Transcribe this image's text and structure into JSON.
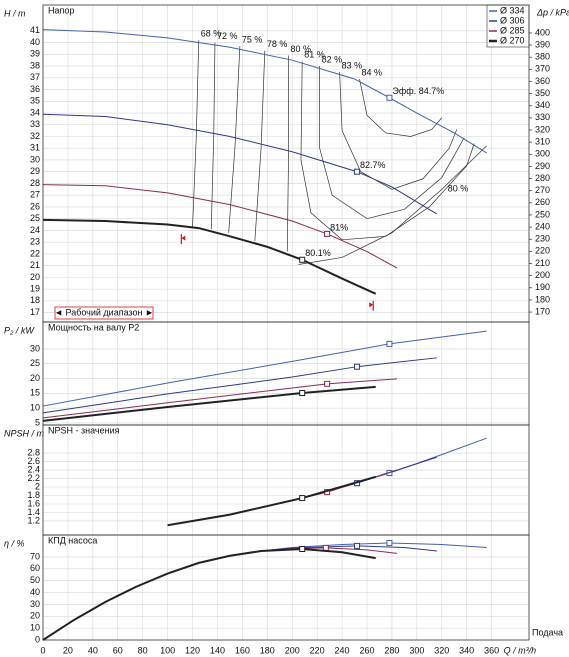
{
  "chart_data": [
    {
      "type": "line",
      "title": "Напор",
      "ylabel": "H / m",
      "y2label": "Δp / kPa",
      "ylim": [
        16.2,
        43.2
      ],
      "yticks": [
        17,
        18,
        19,
        20,
        21,
        22,
        23,
        24,
        25,
        26,
        27,
        28,
        29,
        30,
        31,
        32,
        33,
        34,
        35,
        36,
        37,
        38,
        39,
        40,
        41
      ],
      "y2lim": [
        161.8,
        423
      ],
      "y2ticks": [
        170,
        180,
        190,
        200,
        210,
        220,
        230,
        240,
        250,
        260,
        270,
        280,
        290,
        300,
        310,
        320,
        330,
        340,
        350,
        360,
        370,
        380,
        390,
        400
      ],
      "grid": true,
      "legend": "upper right",
      "series": [
        {
          "name": "Ø 334",
          "color": "#4262b0",
          "linewidth": 1,
          "x": [
            0,
            50,
            100,
            150,
            200,
            250,
            278,
            300,
            330,
            356
          ],
          "values": [
            41.1,
            40.9,
            40.4,
            39.6,
            38.5,
            36.9,
            35.3,
            34.0,
            32.3,
            30.6
          ],
          "bep": {
            "x": 278,
            "y": 35.3,
            "label": "Эфф. 84.7%"
          }
        },
        {
          "name": "Ø 306",
          "color": "#2e3a8c",
          "linewidth": 1,
          "x": [
            0,
            50,
            100,
            150,
            200,
            252,
            280,
            316
          ],
          "values": [
            33.9,
            33.7,
            33.0,
            32.0,
            30.7,
            29.0,
            27.7,
            25.4
          ],
          "bep": {
            "x": 252,
            "y": 29.0,
            "label": "82.7%"
          }
        },
        {
          "name": "Ø 285",
          "color": "#8c2a5a",
          "linewidth": 1,
          "x": [
            0,
            50,
            100,
            150,
            200,
            228,
            260,
            284
          ],
          "values": [
            27.9,
            27.8,
            27.2,
            26.2,
            24.8,
            23.7,
            22.2,
            20.8
          ],
          "bep": {
            "x": 228,
            "y": 23.7,
            "label": "81%"
          }
        },
        {
          "name": "Ø 270",
          "color": "#222222",
          "linewidth": 2,
          "x": [
            0,
            50,
            100,
            125,
            150,
            180,
            208,
            240,
            267
          ],
          "values": [
            24.9,
            24.8,
            24.5,
            24.2,
            23.5,
            22.6,
            21.5,
            19.9,
            18.6
          ],
          "bep": {
            "x": 208,
            "y": 21.5,
            "label": "80.1%"
          }
        }
      ],
      "iso_lines": [
        {
          "value": 68,
          "label": "68 %",
          "x": [
            125,
            123,
            120
          ],
          "y": [
            40.2,
            32,
            24.3
          ]
        },
        {
          "value": 72,
          "label": "72 %",
          "x": [
            138,
            137,
            135
          ],
          "y": [
            40.0,
            32,
            24.1
          ]
        },
        {
          "value": 75,
          "label": "75 %",
          "x": [
            158,
            154,
            149
          ],
          "y": [
            39.7,
            31,
            23.8
          ]
        },
        {
          "value": 78,
          "label": "78 %",
          "x": [
            178,
            175,
            170
          ],
          "y": [
            39.3,
            31,
            23.1
          ]
        },
        {
          "value": 80,
          "label": "80 %",
          "x": [
            197,
            197,
            196
          ],
          "y": [
            38.9,
            30,
            22.2
          ]
        },
        {
          "value": 81,
          "label": "81 %",
          "x": [
            208,
            207,
            215,
            240,
            275,
            310,
            340,
            346
          ],
          "y": [
            38.4,
            30,
            25.5,
            23.2,
            23.5,
            26,
            29.5,
            31.4
          ]
        },
        {
          "value": 82,
          "label": "82 %",
          "x": [
            222,
            222,
            232,
            260,
            290,
            320,
            338
          ],
          "y": [
            38.0,
            31,
            27,
            25,
            25.8,
            28.5,
            31.9
          ]
        },
        {
          "value": 83,
          "label": "83 %",
          "x": [
            238,
            240,
            255,
            280,
            305,
            326,
            332
          ],
          "y": [
            37.5,
            32.5,
            29,
            27.5,
            28.4,
            31,
            32.6
          ]
        },
        {
          "value": 84,
          "label": "84 %",
          "x": [
            254,
            260,
            275,
            295,
            312,
            320
          ],
          "y": [
            36.9,
            33.8,
            32.3,
            32.0,
            32.6,
            33.6
          ]
        },
        {
          "value": 80,
          "label": "80 %",
          "x": [
            205,
            240,
            280,
            320,
            356
          ],
          "y": [
            21.1,
            21.7,
            23.8,
            27.5,
            31.2
          ]
        }
      ],
      "operating_range": {
        "label": "◄ Рабочий диапазон ►",
        "x": [
          111,
          265
        ]
      }
    },
    {
      "type": "line",
      "title": "Мощность на валу P2",
      "ylabel": "P₂ / kW",
      "ylim": [
        4.3,
        39.1
      ],
      "yticks": [
        5,
        10,
        15,
        20,
        25,
        30
      ],
      "grid": true,
      "series": [
        {
          "color": "#4262b0",
          "linewidth": 1,
          "x": [
            0,
            100,
            200,
            278,
            356
          ],
          "values": [
            10.7,
            18.5,
            25.8,
            31.7,
            36.0
          ],
          "bep": {
            "x": 278,
            "y": 31.7
          }
        },
        {
          "color": "#2e3a8c",
          "linewidth": 1,
          "x": [
            0,
            100,
            200,
            252,
            316
          ],
          "values": [
            8.4,
            14.8,
            20.5,
            24.0,
            27.0
          ],
          "bep": {
            "x": 252,
            "y": 24.0
          }
        },
        {
          "color": "#8c2a5a",
          "linewidth": 1,
          "x": [
            0,
            100,
            200,
            228,
            284
          ],
          "values": [
            6.7,
            11.8,
            16.8,
            18.2,
            19.9
          ],
          "bep": {
            "x": 228,
            "y": 18.2
          }
        },
        {
          "color": "#222222",
          "linewidth": 2,
          "x": [
            0,
            100,
            208,
            267
          ],
          "values": [
            5.7,
            10.4,
            15.1,
            17.2
          ],
          "bep": {
            "x": 208,
            "y": 15.1
          }
        }
      ]
    },
    {
      "type": "line",
      "title": "NPSH - значения",
      "ylabel": "NPSH / m",
      "ylim": [
        0.87,
        3.46
      ],
      "yticks": [
        1.2,
        1.4,
        1.6,
        1.8,
        2,
        2.2,
        2.4,
        2.6,
        2.8
      ],
      "grid": true,
      "series": [
        {
          "color": "#4262b0",
          "linewidth": 1,
          "x": [
            100,
            150,
            200,
            250,
            278,
            300,
            356
          ],
          "values": [
            1.1,
            1.35,
            1.68,
            2.08,
            2.33,
            2.55,
            3.15
          ],
          "bep": {
            "x": 278,
            "y": 2.33
          }
        },
        {
          "color": "#2e3a8c",
          "linewidth": 1,
          "x": [
            100,
            150,
            200,
            252,
            300,
            316
          ],
          "values": [
            1.1,
            1.35,
            1.68,
            2.09,
            2.55,
            2.7
          ],
          "bep": {
            "x": 252,
            "y": 2.09
          }
        },
        {
          "color": "#8c2a5a",
          "linewidth": 1,
          "x": [
            100,
            150,
            200,
            228,
            284
          ],
          "values": [
            1.1,
            1.35,
            1.68,
            1.88,
            2.4
          ],
          "bep": {
            "x": 228,
            "y": 1.88
          }
        },
        {
          "color": "#222222",
          "linewidth": 2,
          "x": [
            100,
            150,
            208,
            267
          ],
          "values": [
            1.1,
            1.35,
            1.74,
            2.24
          ],
          "bep": {
            "x": 208,
            "y": 1.74
          }
        }
      ]
    },
    {
      "type": "line",
      "title": "КПД насоса",
      "ylabel": "η / %",
      "xlabel": "Q / m³/h",
      "xlabel2": "Подача",
      "xlim": [
        0,
        390
      ],
      "xticks": [
        0,
        20,
        40,
        60,
        80,
        100,
        120,
        140,
        160,
        180,
        200,
        220,
        240,
        260,
        280,
        300,
        320,
        340,
        360
      ],
      "ylim": [
        0,
        88.5
      ],
      "yticks": [
        0,
        10,
        20,
        30,
        40,
        50,
        60,
        70
      ],
      "grid": true,
      "series": [
        {
          "color": "#4262b0",
          "linewidth": 1,
          "x": [
            0,
            25,
            50,
            75,
            100,
            125,
            150,
            175,
            200,
            240,
            278,
            320,
            356
          ],
          "values": [
            0,
            17,
            32,
            45,
            56,
            65,
            71,
            75,
            78,
            80.5,
            81.8,
            80.5,
            78
          ],
          "bep": {
            "x": 278,
            "y": 81.8
          }
        },
        {
          "color": "#2e3a8c",
          "linewidth": 1,
          "x": [
            0,
            25,
            50,
            75,
            100,
            125,
            150,
            175,
            200,
            252,
            290,
            316
          ],
          "values": [
            0,
            17,
            32,
            45,
            56,
            65,
            71,
            75,
            77.5,
            79.3,
            78,
            75
          ],
          "bep": {
            "x": 252,
            "y": 79.3
          }
        },
        {
          "color": "#8c2a5a",
          "linewidth": 1,
          "x": [
            0,
            25,
            50,
            75,
            100,
            125,
            150,
            175,
            200,
            227,
            260,
            284
          ],
          "values": [
            0,
            17,
            32,
            45,
            56,
            65,
            71,
            75,
            77,
            77.6,
            76,
            73
          ],
          "bep": {
            "x": 227,
            "y": 77.6
          }
        },
        {
          "color": "#222222",
          "linewidth": 2,
          "x": [
            0,
            25,
            50,
            75,
            100,
            125,
            150,
            175,
            208,
            240,
            267
          ],
          "values": [
            0,
            17,
            32,
            45,
            56,
            65,
            71,
            75,
            76.7,
            74,
            69
          ],
          "bep": {
            "x": 208,
            "y": 76.7
          }
        }
      ]
    }
  ]
}
